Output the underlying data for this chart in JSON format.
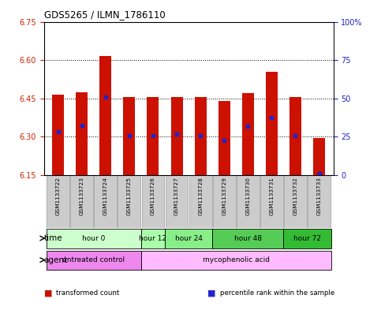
{
  "title": "GDS5265 / ILMN_1786110",
  "samples": [
    "GSM1133722",
    "GSM1133723",
    "GSM1133724",
    "GSM1133725",
    "GSM1133726",
    "GSM1133727",
    "GSM1133728",
    "GSM1133729",
    "GSM1133730",
    "GSM1133731",
    "GSM1133732",
    "GSM1133733"
  ],
  "bar_tops": [
    6.465,
    6.475,
    6.615,
    6.455,
    6.455,
    6.455,
    6.455,
    6.44,
    6.47,
    6.555,
    6.455,
    6.295
  ],
  "blue_vals": [
    6.32,
    6.345,
    6.455,
    6.305,
    6.305,
    6.31,
    6.305,
    6.285,
    6.34,
    6.375,
    6.305,
    6.155
  ],
  "bar_base": 6.15,
  "ylim_left": [
    6.15,
    6.75
  ],
  "ylim_right": [
    0,
    100
  ],
  "yticks_left": [
    6.15,
    6.3,
    6.45,
    6.6,
    6.75
  ],
  "yticks_right": [
    0,
    25,
    50,
    75,
    100
  ],
  "dotted_lines": [
    6.3,
    6.45,
    6.6,
    6.75
  ],
  "time_groups": [
    {
      "label": "hour 0",
      "indices": [
        0,
        1,
        2,
        3
      ],
      "color": "#ccffcc"
    },
    {
      "label": "hour 12",
      "indices": [
        4
      ],
      "color": "#aaffaa"
    },
    {
      "label": "hour 24",
      "indices": [
        5,
        6
      ],
      "color": "#88ee88"
    },
    {
      "label": "hour 48",
      "indices": [
        7,
        8,
        9
      ],
      "color": "#55cc55"
    },
    {
      "label": "hour 72",
      "indices": [
        10,
        11
      ],
      "color": "#33bb33"
    }
  ],
  "agent_groups": [
    {
      "label": "untreated control",
      "indices": [
        0,
        1,
        2,
        3
      ],
      "color": "#ee88ee"
    },
    {
      "label": "mycophenolic acid",
      "indices": [
        4,
        5,
        6,
        7,
        8,
        9,
        10,
        11
      ],
      "color": "#ffbbff"
    }
  ],
  "bar_color": "#cc1100",
  "blue_color": "#2222cc",
  "label_color_left": "#cc2200",
  "label_color_right": "#2222bb",
  "sample_box_color": "#cccccc",
  "sample_box_edge": "#999999",
  "legend": [
    {
      "color": "#cc1100",
      "label": "transformed count"
    },
    {
      "color": "#2222cc",
      "label": "percentile rank within the sample"
    }
  ]
}
